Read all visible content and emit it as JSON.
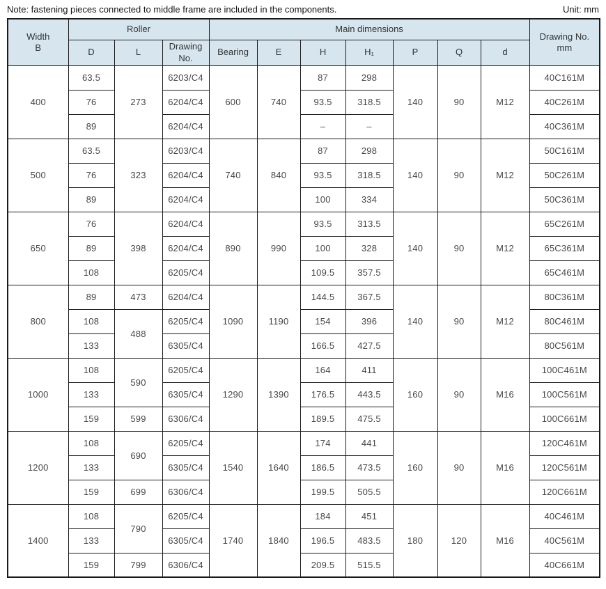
{
  "note": "Note: fastening pieces connected to middle frame are included in the components.",
  "unit_label": "Unit: mm",
  "colors": {
    "header_bg": "#d6e5ee",
    "border": "#1a1a1a",
    "data_text": "#474747"
  },
  "table": {
    "header": {
      "width_b": "Width\nB",
      "roller": "Roller",
      "main_dimensions": "Main dimensions",
      "drawing_no_mm": "Drawing No.\nmm",
      "sub": [
        "D",
        "L",
        "Drawing\nNo.",
        "Bearing",
        "E",
        "H",
        "H₁",
        "P",
        "Q",
        "d"
      ]
    },
    "groups": [
      {
        "width": "400",
        "bearing": "600",
        "e": "740",
        "p": "140",
        "q": "90",
        "d_thread": "M12",
        "l_spans": [
          {
            "value": "273",
            "rows": 3
          }
        ],
        "rows": [
          {
            "d": "63.5",
            "drawing": "6203/C4",
            "h": "87",
            "h1": "298",
            "model": "40C161M"
          },
          {
            "d": "76",
            "drawing": "6204/C4",
            "h": "93.5",
            "h1": "318.5",
            "model": "40C261M"
          },
          {
            "d": "89",
            "drawing": "6204/C4",
            "h": "–",
            "h1": "–",
            "model": "40C361M"
          }
        ]
      },
      {
        "width": "500",
        "bearing": "740",
        "e": "840",
        "p": "140",
        "q": "90",
        "d_thread": "M12",
        "l_spans": [
          {
            "value": "323",
            "rows": 3
          }
        ],
        "rows": [
          {
            "d": "63.5",
            "drawing": "6203/C4",
            "h": "87",
            "h1": "298",
            "model": "50C161M"
          },
          {
            "d": "76",
            "drawing": "6204/C4",
            "h": "93.5",
            "h1": "318.5",
            "model": "50C261M"
          },
          {
            "d": "89",
            "drawing": "6204/C4",
            "h": "100",
            "h1": "334",
            "model": "50C361M"
          }
        ]
      },
      {
        "width": "650",
        "bearing": "890",
        "e": "990",
        "p": "140",
        "q": "90",
        "d_thread": "M12",
        "l_spans": [
          {
            "value": "398",
            "rows": 3
          }
        ],
        "rows": [
          {
            "d": "76",
            "drawing": "6204/C4",
            "h": "93.5",
            "h1": "313.5",
            "model": "65C261M"
          },
          {
            "d": "89",
            "drawing": "6204/C4",
            "h": "100",
            "h1": "328",
            "model": "65C361M"
          },
          {
            "d": "108",
            "drawing": "6205/C4",
            "h": "109.5",
            "h1": "357.5",
            "model": "65C461M"
          }
        ]
      },
      {
        "width": "800",
        "bearing": "1090",
        "e": "1190",
        "p": "140",
        "q": "90",
        "d_thread": "M12",
        "l_spans": [
          {
            "value": "473",
            "rows": 1
          },
          {
            "value": "488",
            "rows": 2
          }
        ],
        "rows": [
          {
            "d": "89",
            "drawing": "6204/C4",
            "h": "144.5",
            "h1": "367.5",
            "model": "80C361M"
          },
          {
            "d": "108",
            "drawing": "6205/C4",
            "h": "154",
            "h1": "396",
            "model": "80C461M"
          },
          {
            "d": "133",
            "drawing": "6305/C4",
            "h": "166.5",
            "h1": "427.5",
            "model": "80C561M"
          }
        ]
      },
      {
        "width": "1000",
        "bearing": "1290",
        "e": "1390",
        "p": "160",
        "q": "90",
        "d_thread": "M16",
        "l_spans": [
          {
            "value": "590",
            "rows": 2
          },
          {
            "value": "599",
            "rows": 1
          }
        ],
        "rows": [
          {
            "d": "108",
            "drawing": "6205/C4",
            "h": "164",
            "h1": "411",
            "model": "100C461M"
          },
          {
            "d": "133",
            "drawing": "6305/C4",
            "h": "176.5",
            "h1": "443.5",
            "model": "100C561M"
          },
          {
            "d": "159",
            "drawing": "6306/C4",
            "h": "189.5",
            "h1": "475.5",
            "model": "100C661M"
          }
        ]
      },
      {
        "width": "1200",
        "bearing": "1540",
        "e": "1640",
        "p": "160",
        "q": "90",
        "d_thread": "M16",
        "l_spans": [
          {
            "value": "690",
            "rows": 2
          },
          {
            "value": "699",
            "rows": 1
          }
        ],
        "rows": [
          {
            "d": "108",
            "drawing": "6205/C4",
            "h": "174",
            "h1": "441",
            "model": "120C461M"
          },
          {
            "d": "133",
            "drawing": "6305/C4",
            "h": "186.5",
            "h1": "473.5",
            "model": "120C561M"
          },
          {
            "d": "159",
            "drawing": "6306/C4",
            "h": "199.5",
            "h1": "505.5",
            "model": "120C661M"
          }
        ]
      },
      {
        "width": "1400",
        "bearing": "1740",
        "e": "1840",
        "p": "180",
        "q": "120",
        "d_thread": "M16",
        "l_spans": [
          {
            "value": "790",
            "rows": 2
          },
          {
            "value": "799",
            "rows": 1
          }
        ],
        "rows": [
          {
            "d": "108",
            "drawing": "6205/C4",
            "h": "184",
            "h1": "451",
            "model": "40C461M"
          },
          {
            "d": "133",
            "drawing": "6305/C4",
            "h": "196.5",
            "h1": "483.5",
            "model": "40C561M"
          },
          {
            "d": "159",
            "drawing": "6306/C4",
            "h": "209.5",
            "h1": "515.5",
            "model": "40C661M"
          }
        ]
      }
    ]
  }
}
